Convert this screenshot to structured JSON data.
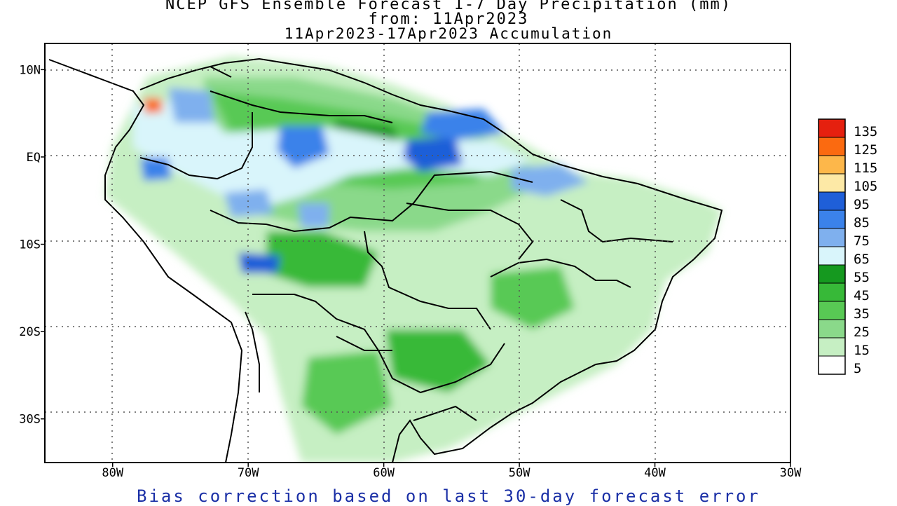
{
  "title": {
    "line1": "NCEP GFS Ensemble Forecast 1-7 Day Precipitation (mm)",
    "line2": "from: 11Apr2023",
    "line3": "11Apr2023-17Apr2023 Accumulation"
  },
  "footer": "Bias correction based on last 30-day forecast error",
  "axes": {
    "lat_ticks": [
      {
        "value": 10,
        "label": "10N"
      },
      {
        "value": 0,
        "label": "EQ"
      },
      {
        "value": -10,
        "label": "10S"
      },
      {
        "value": -20,
        "label": "20S"
      },
      {
        "value": -30,
        "label": "30S"
      }
    ],
    "lon_ticks": [
      {
        "value": -80,
        "label": "80W"
      },
      {
        "value": -70,
        "label": "70W"
      },
      {
        "value": -60,
        "label": "60W"
      },
      {
        "value": -50,
        "label": "50W"
      },
      {
        "value": -40,
        "label": "40W"
      },
      {
        "value": -30,
        "label": "30W"
      }
    ],
    "lon_range": [
      -85,
      -30
    ],
    "lat_range": [
      -35,
      13
    ]
  },
  "legend": {
    "levels": [
      "135",
      "125",
      "115",
      "105",
      "95",
      "85",
      "75",
      "65",
      "55",
      "45",
      "35",
      "25",
      "15",
      "5"
    ],
    "colors": [
      "#e5200f",
      "#fb6a10",
      "#fdb74a",
      "#fde9a6",
      "#1f5fd8",
      "#3b82ea",
      "#7fb0ee",
      "#d9f5fb",
      "#15991f",
      "#37b938",
      "#58c954",
      "#8ad98a",
      "#c6efc3",
      "#ffffff"
    ]
  }
}
